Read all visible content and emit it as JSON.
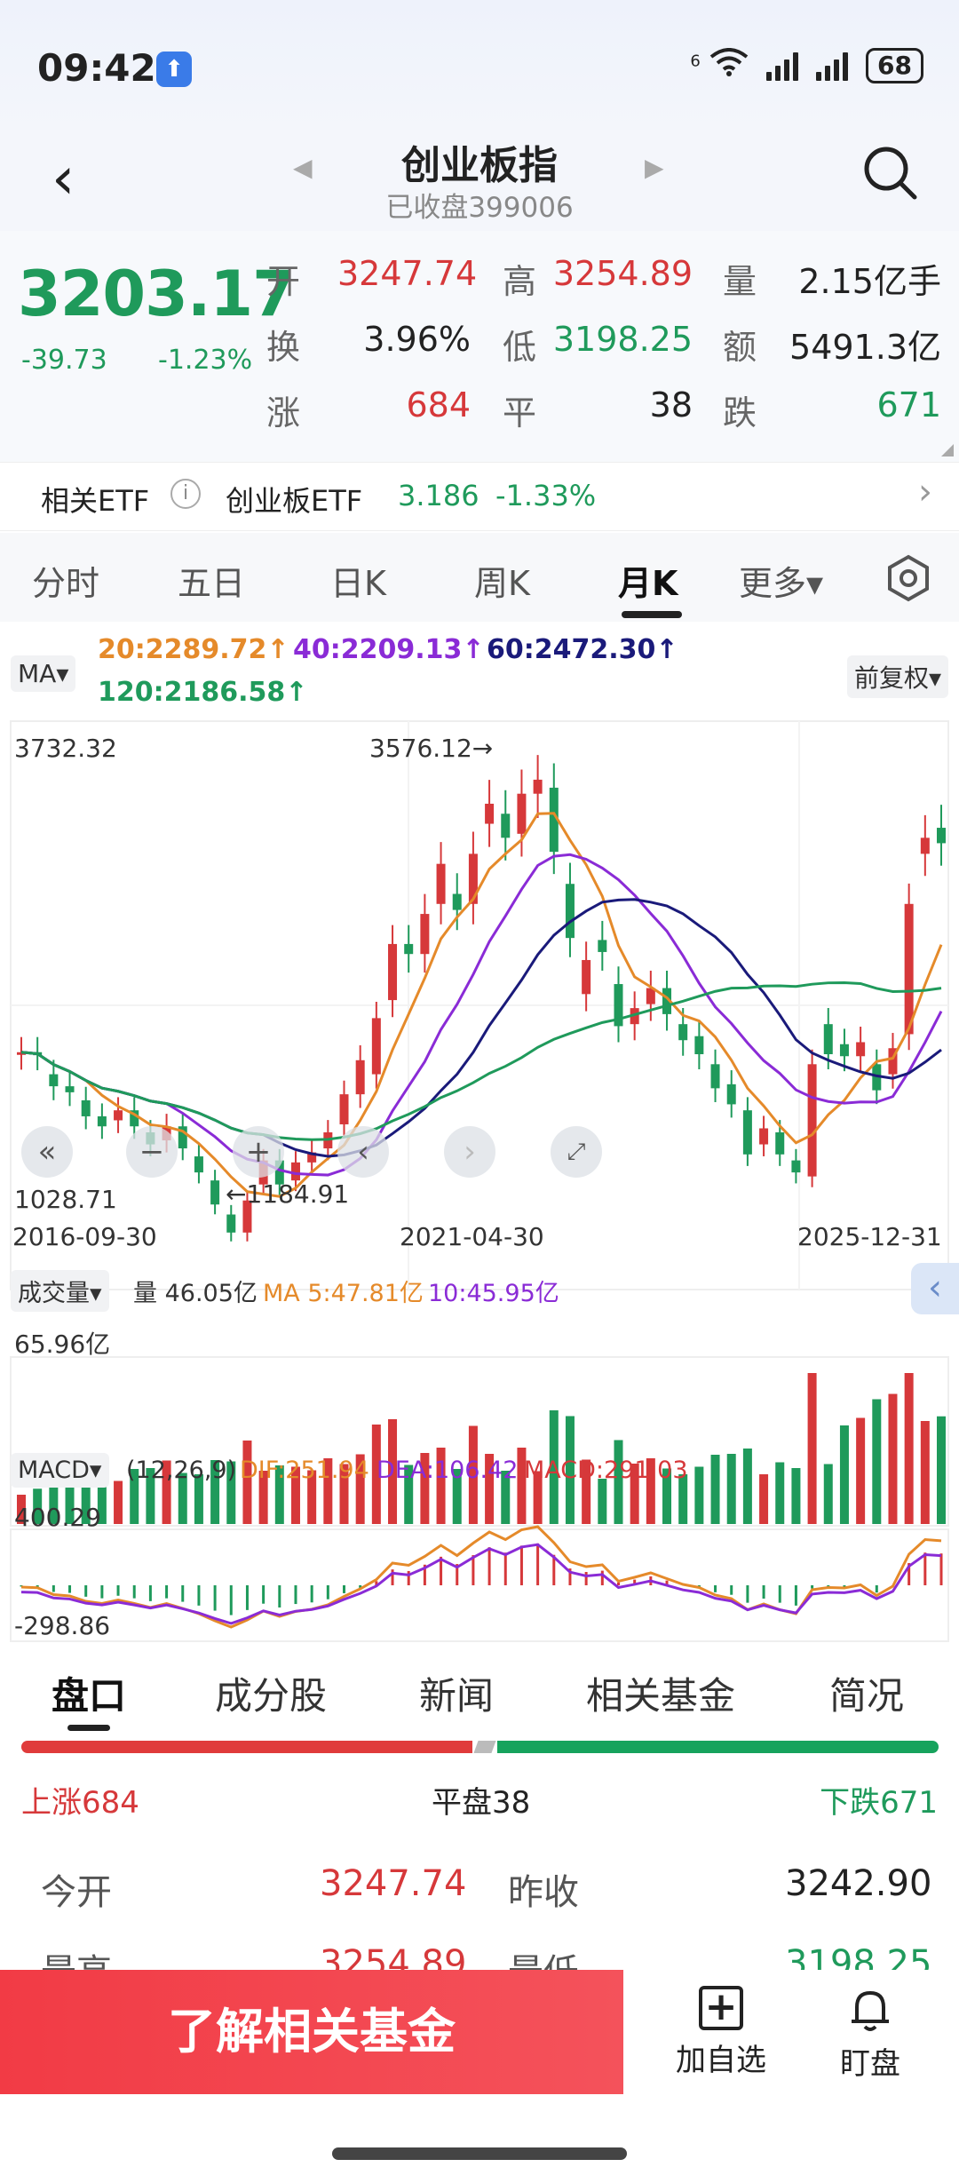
{
  "status_bar": {
    "time": "09:42",
    "battery": "68",
    "network": "6"
  },
  "header": {
    "title": "创业板指",
    "subtitle": "已收盘399006"
  },
  "quote": {
    "price": "3203.17",
    "change": "-39.73",
    "change_pct": "-1.23%",
    "fields": [
      {
        "label": "开",
        "value": "3247.74",
        "color": "red"
      },
      {
        "label": "高",
        "value": "3254.89",
        "color": "red"
      },
      {
        "label": "量",
        "value": "2.15亿手",
        "color": "black"
      },
      {
        "label": "换",
        "value": "3.96%",
        "color": "black"
      },
      {
        "label": "低",
        "value": "3198.25",
        "color": "green"
      },
      {
        "label": "额",
        "value": "5491.3亿",
        "color": "black"
      },
      {
        "label": "涨",
        "value": "684",
        "color": "red"
      },
      {
        "label": "平",
        "value": "38",
        "color": "black"
      },
      {
        "label": "跌",
        "value": "671",
        "color": "green"
      }
    ]
  },
  "etf": {
    "label": "相关ETF",
    "name": "创业板ETF",
    "price": "3.186",
    "pct": "-1.33%"
  },
  "kline_tabs": [
    {
      "label": "分时"
    },
    {
      "label": "五日"
    },
    {
      "label": "日K"
    },
    {
      "label": "周K"
    },
    {
      "label": "月K",
      "active": true
    },
    {
      "label": "更多▾"
    }
  ],
  "chart": {
    "ma_tag": "MA▾",
    "ma_items": [
      {
        "text": "20:2289.72↑",
        "color": "#e58a2a"
      },
      {
        "text": "40:2209.13↑",
        "color": "#8a2bd6"
      },
      {
        "text": "60:2472.30↑",
        "color": "#1a1a7a"
      },
      {
        "text": "120:2186.58↑",
        "color": "#1f9a5b"
      }
    ],
    "adjust_tag": "前复权▾",
    "y_max": "3732.32",
    "y_min": "1028.71",
    "peak_label": "3576.12→",
    "trough_label": "←1184.91",
    "x_labels": [
      "2016-09-30",
      "2021-04-30",
      "2025-12-31"
    ],
    "volume": {
      "tag": "成交量▾",
      "vol": "量 46.05亿",
      "ma5": "MA 5:47.81亿",
      "ma10": "10:45.95亿",
      "y_max": "65.96亿"
    },
    "macd": {
      "tag": "MACD▾",
      "params": "(12,26,9)",
      "dif": "DIF:251.94",
      "dea": "DEA:106.42",
      "macd": "MACD:291.03",
      "y_max": "400.29",
      "y_min": "-298.86"
    }
  },
  "bottom_tabs": [
    {
      "label": "盘口",
      "active": true
    },
    {
      "label": "成分股"
    },
    {
      "label": "新闻"
    },
    {
      "label": "相关基金"
    },
    {
      "label": "简况"
    }
  ],
  "ratio": {
    "up": "上涨684",
    "flat": "平盘38",
    "down": "下跌671"
  },
  "detail": [
    {
      "label": "今开",
      "value": "3247.74",
      "label2": "昨收",
      "value2": "3242.90"
    },
    {
      "label": "最高",
      "value": "3254.89",
      "label2": "最低",
      "value2": "3198.25"
    }
  ],
  "action": {
    "button": "了解相关基金",
    "add_label": "加自选",
    "watch_label": "盯盘"
  },
  "chart_data": {
    "type": "candlestick",
    "period": "monthly",
    "x_range": [
      "2016-09-30",
      "2025-12-31"
    ],
    "ylim": [
      1028.71,
      3732.32
    ],
    "annotations": [
      {
        "label": "3576.12",
        "x": "2021-12"
      },
      {
        "label": "1184.91",
        "x": "2018-10"
      }
    ],
    "close_series": [
      {
        "x": "2016-09",
        "o": 2148,
        "c": 2160
      },
      {
        "x": "2016-11",
        "o": 2160,
        "c": 2145
      },
      {
        "x": "2017-01",
        "o": 2050,
        "c": 1990
      },
      {
        "x": "2017-03",
        "o": 1990,
        "c": 1960
      },
      {
        "x": "2017-05",
        "o": 1920,
        "c": 1840
      },
      {
        "x": "2017-07",
        "o": 1840,
        "c": 1790
      },
      {
        "x": "2017-09",
        "o": 1820,
        "c": 1870
      },
      {
        "x": "2017-11",
        "o": 1870,
        "c": 1790
      },
      {
        "x": "2018-01",
        "o": 1760,
        "c": 1700
      },
      {
        "x": "2018-03",
        "o": 1720,
        "c": 1790
      },
      {
        "x": "2018-05",
        "o": 1790,
        "c": 1680
      },
      {
        "x": "2018-07",
        "o": 1640,
        "c": 1560
      },
      {
        "x": "2018-09",
        "o": 1520,
        "c": 1400
      },
      {
        "x": "2018-11",
        "o": 1350,
        "c": 1260
      },
      {
        "x": "2019-01",
        "o": 1260,
        "c": 1420
      },
      {
        "x": "2019-03",
        "o": 1500,
        "c": 1620
      },
      {
        "x": "2019-05",
        "o": 1620,
        "c": 1500
      },
      {
        "x": "2019-07",
        "o": 1520,
        "c": 1610
      },
      {
        "x": "2019-09",
        "o": 1610,
        "c": 1660
      },
      {
        "x": "2019-11",
        "o": 1680,
        "c": 1760
      },
      {
        "x": "2020-01",
        "o": 1800,
        "c": 1950
      },
      {
        "x": "2020-03",
        "o": 1950,
        "c": 2120
      },
      {
        "x": "2020-05",
        "o": 2050,
        "c": 2330
      },
      {
        "x": "2020-07",
        "o": 2420,
        "c": 2700
      },
      {
        "x": "2020-09",
        "o": 2700,
        "c": 2650
      },
      {
        "x": "2020-11",
        "o": 2650,
        "c": 2850
      },
      {
        "x": "2021-01",
        "o": 2900,
        "c": 3100
      },
      {
        "x": "2021-03",
        "o": 2950,
        "c": 2870
      },
      {
        "x": "2021-05",
        "o": 2900,
        "c": 3150
      },
      {
        "x": "2021-07",
        "o": 3300,
        "c": 3400
      },
      {
        "x": "2021-09",
        "o": 3350,
        "c": 3230
      },
      {
        "x": "2021-11",
        "o": 3250,
        "c": 3450
      },
      {
        "x": "2021-12",
        "o": 3450,
        "c": 3520
      },
      {
        "x": "2022-01",
        "o": 3480,
        "c": 3160
      },
      {
        "x": "2022-03",
        "o": 3000,
        "c": 2730
      },
      {
        "x": "2022-05",
        "o": 2450,
        "c": 2620
      },
      {
        "x": "2022-07",
        "o": 2720,
        "c": 2660
      },
      {
        "x": "2022-09",
        "o": 2500,
        "c": 2290
      },
      {
        "x": "2022-11",
        "o": 2300,
        "c": 2380
      },
      {
        "x": "2023-01",
        "o": 2400,
        "c": 2480
      },
      {
        "x": "2023-03",
        "o": 2480,
        "c": 2350
      },
      {
        "x": "2023-05",
        "o": 2300,
        "c": 2220
      },
      {
        "x": "2023-07",
        "o": 2240,
        "c": 2150
      },
      {
        "x": "2023-09",
        "o": 2100,
        "c": 1980
      },
      {
        "x": "2023-11",
        "o": 2000,
        "c": 1900
      },
      {
        "x": "2024-01",
        "o": 1870,
        "c": 1650
      },
      {
        "x": "2024-03",
        "o": 1700,
        "c": 1780
      },
      {
        "x": "2024-05",
        "o": 1760,
        "c": 1650
      },
      {
        "x": "2024-07",
        "o": 1620,
        "c": 1560
      },
      {
        "x": "2024-09",
        "o": 1540,
        "c": 2100
      },
      {
        "x": "2024-10",
        "o": 2300,
        "c": 2150
      },
      {
        "x": "2024-12",
        "o": 2200,
        "c": 2140
      },
      {
        "x": "2025-02",
        "o": 2140,
        "c": 2210
      },
      {
        "x": "2025-04",
        "o": 2100,
        "c": 1970
      },
      {
        "x": "2025-06",
        "o": 2050,
        "c": 2180
      },
      {
        "x": "2025-08",
        "o": 2250,
        "c": 2900
      },
      {
        "x": "2025-10",
        "o": 3150,
        "c": 3230
      },
      {
        "x": "2025-12",
        "o": 3280,
        "c": 3203
      }
    ],
    "series_ma": {
      "MA20": "2289.72",
      "MA40": "2209.13",
      "MA60": "2472.30",
      "MA120": "2186.58"
    }
  }
}
